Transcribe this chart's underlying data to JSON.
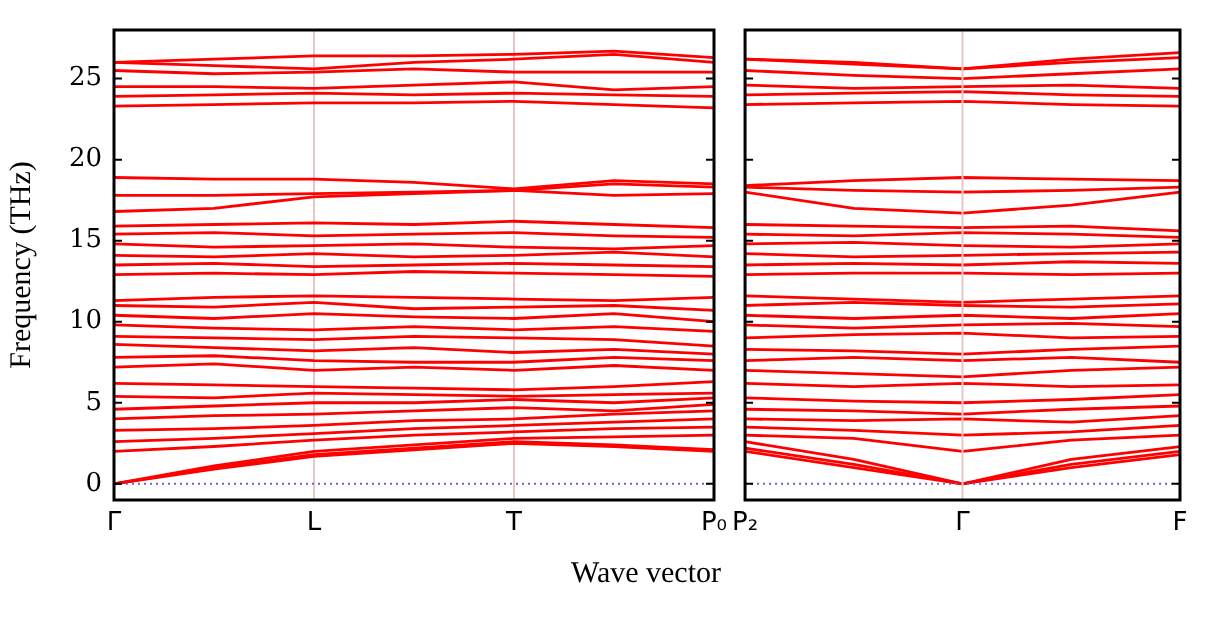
{
  "chart_data": [
    {
      "type": "line",
      "ylabel": "Frequency (THz)",
      "xlabel": "Wave vector",
      "categories": [
        "Γ",
        null,
        "L",
        null,
        "T",
        null,
        "P₀"
      ],
      "ylim": [
        -1,
        28
      ],
      "yticks": [
        0,
        5,
        10,
        15,
        20,
        25
      ],
      "grid": "x",
      "marker": "none",
      "line_style": "solid",
      "legend": false,
      "ref_lines": [
        {
          "axis": "y",
          "value": 0,
          "color": "#6666cc",
          "line_style": "dotted"
        }
      ],
      "series": [
        {
          "color": "#ff0000",
          "values": [
            0,
            1.0,
            1.8,
            2.2,
            2.6,
            2.4,
            2.1
          ]
        },
        {
          "color": "#ff0000",
          "values": [
            0,
            0.9,
            1.7,
            2.1,
            2.5,
            2.3,
            2.0
          ]
        },
        {
          "color": "#ff0000",
          "values": [
            0,
            1.1,
            2.0,
            2.4,
            2.8,
            2.9,
            3.0
          ]
        },
        {
          "color": "#ff0000",
          "values": [
            2.0,
            2.3,
            2.7,
            3.0,
            3.2,
            3.4,
            3.5
          ]
        },
        {
          "color": "#ff0000",
          "values": [
            2.6,
            2.8,
            3.1,
            3.4,
            3.6,
            3.8,
            4.0
          ]
        },
        {
          "color": "#ff0000",
          "values": [
            3.3,
            3.4,
            3.6,
            3.9,
            4.0,
            4.3,
            4.5
          ]
        },
        {
          "color": "#ff0000",
          "values": [
            4.0,
            4.2,
            4.3,
            4.5,
            4.7,
            4.5,
            4.9
          ]
        },
        {
          "color": "#ff0000",
          "values": [
            4.6,
            4.8,
            5.0,
            5.0,
            5.2,
            5.0,
            5.3
          ]
        },
        {
          "color": "#ff0000",
          "values": [
            5.4,
            5.3,
            5.6,
            5.5,
            5.4,
            5.5,
            5.6
          ]
        },
        {
          "color": "#ff0000",
          "values": [
            6.2,
            6.1,
            6.0,
            5.9,
            5.8,
            6.0,
            6.3
          ]
        },
        {
          "color": "#ff0000",
          "values": [
            7.2,
            7.4,
            7.0,
            7.2,
            7.0,
            7.3,
            7.0
          ]
        },
        {
          "color": "#ff0000",
          "values": [
            7.8,
            7.9,
            7.6,
            7.5,
            7.5,
            7.8,
            7.6
          ]
        },
        {
          "color": "#ff0000",
          "values": [
            8.6,
            8.4,
            8.2,
            8.4,
            8.1,
            8.3,
            8.0
          ]
        },
        {
          "color": "#ff0000",
          "values": [
            9.1,
            9.0,
            8.9,
            9.1,
            9.0,
            8.9,
            8.5
          ]
        },
        {
          "color": "#ff0000",
          "values": [
            9.8,
            9.6,
            9.5,
            9.7,
            9.5,
            9.7,
            9.4
          ]
        },
        {
          "color": "#ff0000",
          "values": [
            10.4,
            10.2,
            10.5,
            10.3,
            10.2,
            10.5,
            10.0
          ]
        },
        {
          "color": "#ff0000",
          "values": [
            11.0,
            10.9,
            11.2,
            10.8,
            10.9,
            11.0,
            10.7
          ]
        },
        {
          "color": "#ff0000",
          "values": [
            11.3,
            11.5,
            11.6,
            11.5,
            11.4,
            11.3,
            11.5
          ]
        },
        {
          "color": "#ff0000",
          "values": [
            12.9,
            13.0,
            12.9,
            13.1,
            13.0,
            12.9,
            12.8
          ]
        },
        {
          "color": "#ff0000",
          "values": [
            13.5,
            13.6,
            13.4,
            13.5,
            13.6,
            13.5,
            13.4
          ]
        },
        {
          "color": "#ff0000",
          "values": [
            14.1,
            14.0,
            14.2,
            14.0,
            14.1,
            14.3,
            14.0
          ]
        },
        {
          "color": "#ff0000",
          "values": [
            14.8,
            14.6,
            14.7,
            14.8,
            14.6,
            14.5,
            14.7
          ]
        },
        {
          "color": "#ff0000",
          "values": [
            15.4,
            15.5,
            15.3,
            15.4,
            15.5,
            15.3,
            15.2
          ]
        },
        {
          "color": "#ff0000",
          "values": [
            15.9,
            16.0,
            16.1,
            16.0,
            16.2,
            16.0,
            15.8
          ]
        },
        {
          "color": "#ff0000",
          "values": [
            16.8,
            17.0,
            17.7,
            17.9,
            18.1,
            17.8,
            17.9
          ]
        },
        {
          "color": "#ff0000",
          "values": [
            17.8,
            17.8,
            17.9,
            18.0,
            18.1,
            18.5,
            18.3
          ]
        },
        {
          "color": "#ff0000",
          "values": [
            18.9,
            18.8,
            18.8,
            18.6,
            18.2,
            18.7,
            18.5
          ]
        },
        {
          "color": "#ff0000",
          "values": [
            23.3,
            23.4,
            23.5,
            23.5,
            23.6,
            23.4,
            23.2
          ]
        },
        {
          "color": "#ff0000",
          "values": [
            23.9,
            24.0,
            24.1,
            24.0,
            24.1,
            24.0,
            23.9
          ]
        },
        {
          "color": "#ff0000",
          "values": [
            24.5,
            24.5,
            24.4,
            24.6,
            24.8,
            24.3,
            24.5
          ]
        },
        {
          "color": "#ff0000",
          "values": [
            25.5,
            25.3,
            25.4,
            25.6,
            25.4,
            25.4,
            25.4
          ]
        },
        {
          "color": "#ff0000",
          "values": [
            26.0,
            25.8,
            25.6,
            26.0,
            26.2,
            26.5,
            26.0
          ]
        },
        {
          "color": "#ff0000",
          "values": [
            26.0,
            26.2,
            26.4,
            26.4,
            26.5,
            26.7,
            26.3
          ]
        }
      ]
    },
    {
      "type": "line",
      "categories": [
        "P₂",
        null,
        "Γ",
        null,
        "F"
      ],
      "ylim": [
        -1,
        28
      ],
      "yticks": [
        0,
        5,
        10,
        15,
        20,
        25
      ],
      "tick_labels": "x",
      "marker": "none",
      "line_style": "solid",
      "legend": false,
      "ref_lines": [
        {
          "axis": "y",
          "value": 0,
          "color": "#6666cc",
          "line_style": "dotted"
        },
        {
          "axis": "x",
          "value": "Γ",
          "color": "#e4c8c8",
          "line_style": "solid"
        }
      ],
      "series": [
        {
          "color": "#ff0000",
          "values": [
            2.0,
            1.0,
            0,
            1.0,
            1.8
          ]
        },
        {
          "color": "#ff0000",
          "values": [
            2.2,
            1.2,
            0,
            1.2,
            2.0
          ]
        },
        {
          "color": "#ff0000",
          "values": [
            2.6,
            1.5,
            0,
            1.5,
            2.3
          ]
        },
        {
          "color": "#ff0000",
          "values": [
            3.0,
            2.8,
            2.0,
            2.7,
            3.0
          ]
        },
        {
          "color": "#ff0000",
          "values": [
            3.5,
            3.3,
            3.0,
            3.2,
            3.6
          ]
        },
        {
          "color": "#ff0000",
          "values": [
            4.0,
            3.9,
            4.0,
            3.8,
            4.2
          ]
        },
        {
          "color": "#ff0000",
          "values": [
            4.6,
            4.5,
            4.3,
            4.6,
            4.8
          ]
        },
        {
          "color": "#ff0000",
          "values": [
            5.3,
            5.1,
            5.0,
            5.2,
            5.5
          ]
        },
        {
          "color": "#ff0000",
          "values": [
            6.2,
            6.0,
            6.2,
            6.0,
            6.1
          ]
        },
        {
          "color": "#ff0000",
          "values": [
            7.0,
            6.8,
            6.6,
            7.0,
            7.2
          ]
        },
        {
          "color": "#ff0000",
          "values": [
            7.6,
            7.8,
            7.6,
            7.8,
            7.5
          ]
        },
        {
          "color": "#ff0000",
          "values": [
            8.3,
            8.2,
            8.0,
            8.3,
            8.5
          ]
        },
        {
          "color": "#ff0000",
          "values": [
            9.0,
            9.2,
            9.3,
            9.0,
            9.1
          ]
        },
        {
          "color": "#ff0000",
          "values": [
            9.8,
            9.6,
            9.8,
            9.9,
            9.7
          ]
        },
        {
          "color": "#ff0000",
          "values": [
            10.4,
            10.2,
            10.4,
            10.2,
            10.5
          ]
        },
        {
          "color": "#ff0000",
          "values": [
            11.0,
            11.2,
            11.0,
            10.9,
            11.1
          ]
        },
        {
          "color": "#ff0000",
          "values": [
            11.6,
            11.4,
            11.2,
            11.4,
            11.6
          ]
        },
        {
          "color": "#ff0000",
          "values": [
            12.9,
            13.0,
            13.0,
            12.9,
            13.0
          ]
        },
        {
          "color": "#ff0000",
          "values": [
            13.5,
            13.6,
            13.5,
            13.7,
            13.6
          ]
        },
        {
          "color": "#ff0000",
          "values": [
            14.2,
            14.0,
            14.1,
            14.2,
            14.3
          ]
        },
        {
          "color": "#ff0000",
          "values": [
            14.8,
            14.9,
            14.7,
            14.6,
            14.8
          ]
        },
        {
          "color": "#ff0000",
          "values": [
            15.4,
            15.3,
            15.5,
            15.4,
            15.2
          ]
        },
        {
          "color": "#ff0000",
          "values": [
            16.0,
            15.9,
            15.8,
            15.9,
            15.6
          ]
        },
        {
          "color": "#ff0000",
          "values": [
            18.0,
            17.0,
            16.7,
            17.2,
            18.0
          ]
        },
        {
          "color": "#ff0000",
          "values": [
            18.3,
            18.1,
            18.0,
            18.1,
            18.3
          ]
        },
        {
          "color": "#ff0000",
          "values": [
            18.4,
            18.7,
            18.9,
            18.8,
            18.7
          ]
        },
        {
          "color": "#ff0000",
          "values": [
            23.4,
            23.5,
            23.6,
            23.4,
            23.3
          ]
        },
        {
          "color": "#ff0000",
          "values": [
            24.0,
            24.1,
            24.2,
            24.0,
            23.9
          ]
        },
        {
          "color": "#ff0000",
          "values": [
            24.6,
            24.4,
            24.5,
            24.6,
            24.4
          ]
        },
        {
          "color": "#ff0000",
          "values": [
            25.5,
            25.2,
            25.0,
            25.3,
            25.6
          ]
        },
        {
          "color": "#ff0000",
          "values": [
            26.2,
            25.9,
            25.6,
            26.0,
            26.3
          ]
        },
        {
          "color": "#ff0000",
          "values": [
            26.2,
            26.0,
            25.6,
            26.2,
            26.6
          ]
        }
      ]
    }
  ]
}
